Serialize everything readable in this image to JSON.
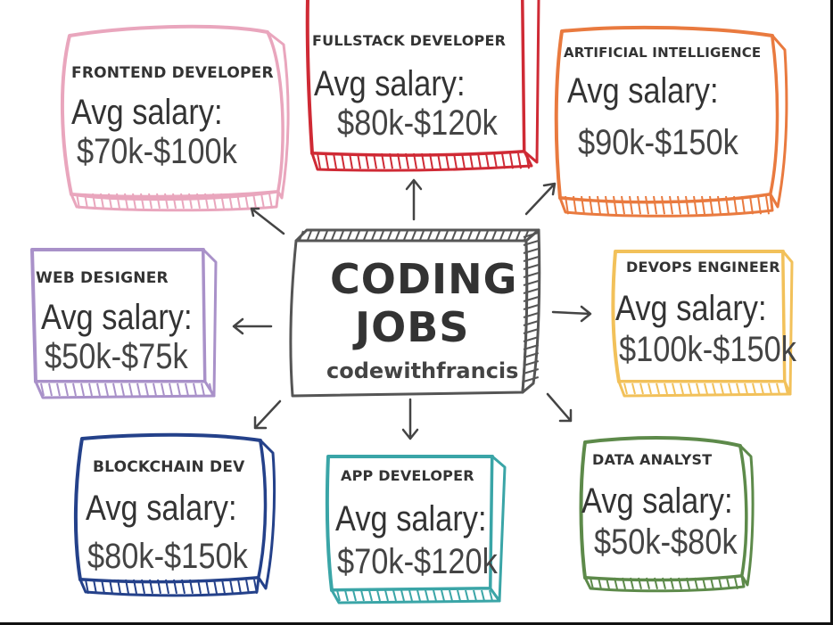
{
  "center": {
    "line1": "CODING",
    "line2": "JOBS",
    "handle": "codewithfrancis"
  },
  "salary_label": "Avg salary:",
  "jobs": [
    {
      "id": "frontend",
      "title": "FRONTEND DEVELOPER",
      "range": "$70k-$100k",
      "color": "#e9a6bd"
    },
    {
      "id": "fullstack",
      "title": "FULLSTACK DEVELOPER",
      "range": "$80k-$120k",
      "color": "#cf2a35"
    },
    {
      "id": "ai",
      "title": "ARTIFICIAL INTELLIGENCE",
      "range": "$90k-$150k",
      "color": "#e97a3f"
    },
    {
      "id": "webdesigner",
      "title": "WEB DESIGNER",
      "range": "$50k-$75k",
      "color": "#a991c9"
    },
    {
      "id": "devops",
      "title": "DEVOPS ENGINEER",
      "range": "$100k-$150k",
      "color": "#f2c15a"
    },
    {
      "id": "blockchain",
      "title": "BLOCKCHAIN DEV",
      "range": "$80k-$150k",
      "color": "#24418a"
    },
    {
      "id": "appdev",
      "title": "APP DEVELOPER",
      "range": "$70k-$120k",
      "color": "#3aa5a7"
    },
    {
      "id": "dataanalyst",
      "title": "DATA ANALYST",
      "range": "$50k-$80k",
      "color": "#5d8a4a"
    }
  ],
  "center_color": "#555555",
  "arrow_color": "#444444"
}
